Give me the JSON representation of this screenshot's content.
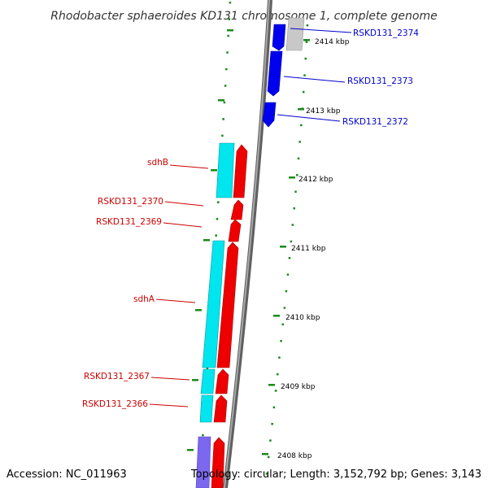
{
  "title": "Rhodobacter sphaeroides KD131 chromosome 1, complete genome",
  "footer": {
    "accession": "Accession: NC_011963",
    "topology": "Topology: circular; Length: 3,152,792 bp; Genes: 3,143"
  },
  "colors": {
    "backbone": "#808080",
    "tick": "#1a8a1a",
    "gene_blue": "#0000ee",
    "gene_gray": "#c8c8c8",
    "gene_red": "#ee0000",
    "gene_cyan": "#00e5ee",
    "gene_purple": "#7b68ee",
    "label_blue": "#0000cc",
    "label_red": "#cc0000"
  },
  "scale_labels": [
    "2414 kbp",
    "2413 kbp",
    "2412 kbp",
    "2411 kbp",
    "2410 kbp",
    "2409 kbp",
    "2408 kbp"
  ],
  "gene_labels_right": [
    "RSKD131_2374",
    "RSKD131_2373",
    "RSKD131_2372"
  ],
  "gene_labels_left": [
    "sdhB",
    "RSKD131_2370",
    "RSKD131_2369",
    "sdhA",
    "RSKD131_2367",
    "RSKD131_2366"
  ]
}
